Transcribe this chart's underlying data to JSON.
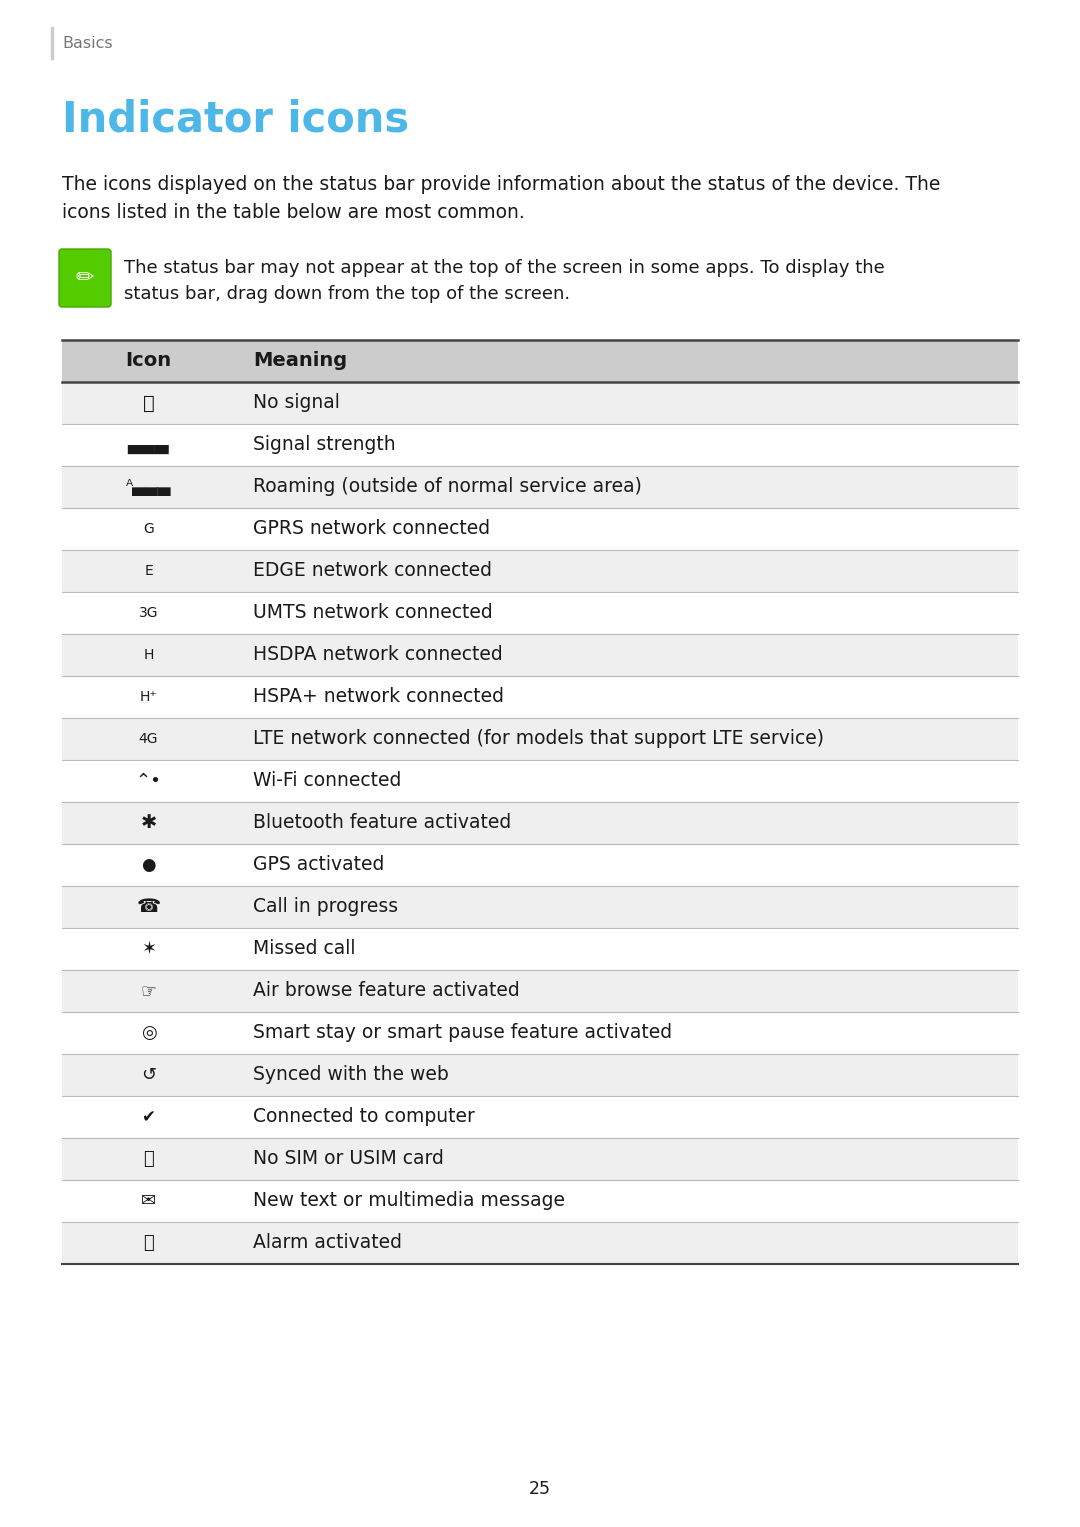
{
  "page_title": "Indicator icons",
  "section_label": "Basics",
  "body_line1": "The icons displayed on the status bar provide information about the status of the device. The",
  "body_line2": "icons listed in the table below are most common.",
  "note_line1": "The status bar may not appear at the top of the screen in some apps. To display the",
  "note_line2": "status bar, drag down from the top of the screen.",
  "title_color": "#4db8e8",
  "header_bg": "#cccccc",
  "row_bg_odd": "#efefef",
  "row_bg_even": "#ffffff",
  "thick_line_color": "#444444",
  "thin_line_color": "#bbbbbb",
  "text_color": "#1a1a1a",
  "section_color": "#777777",
  "note_icon_color": "#55cc00",
  "table_header": [
    "Icon",
    "Meaning"
  ],
  "meanings": [
    "No signal",
    "Signal strength",
    "Roaming (outside of normal service area)",
    "GPRS network connected",
    "EDGE network connected",
    "UMTS network connected",
    "HSDPA network connected",
    "HSPA+ network connected",
    "LTE network connected (for models that support LTE service)",
    "Wi-Fi connected",
    "Bluetooth feature activated",
    "GPS activated",
    "Call in progress",
    "Missed call",
    "Air browse feature activated",
    "Smart stay or smart pause feature activated",
    "Synced with the web",
    "Connected to computer",
    "No SIM or USIM card",
    "New text or multimedia message",
    "Alarm activated"
  ],
  "icon_texts": [
    "⛔",
    "▄▄▄",
    "ᴬ▄▄▄",
    "G",
    "E",
    "3G",
    "H",
    "H⁺",
    "4G",
    "⌃•",
    "✱",
    "●",
    "☎",
    "✶",
    "☞",
    "◎",
    "↺",
    "✔",
    "⎙",
    "✉",
    "⏰"
  ],
  "page_number": "25",
  "bg_color": "#ffffff",
  "fig_width": 10.8,
  "fig_height": 15.27,
  "dpi": 100
}
